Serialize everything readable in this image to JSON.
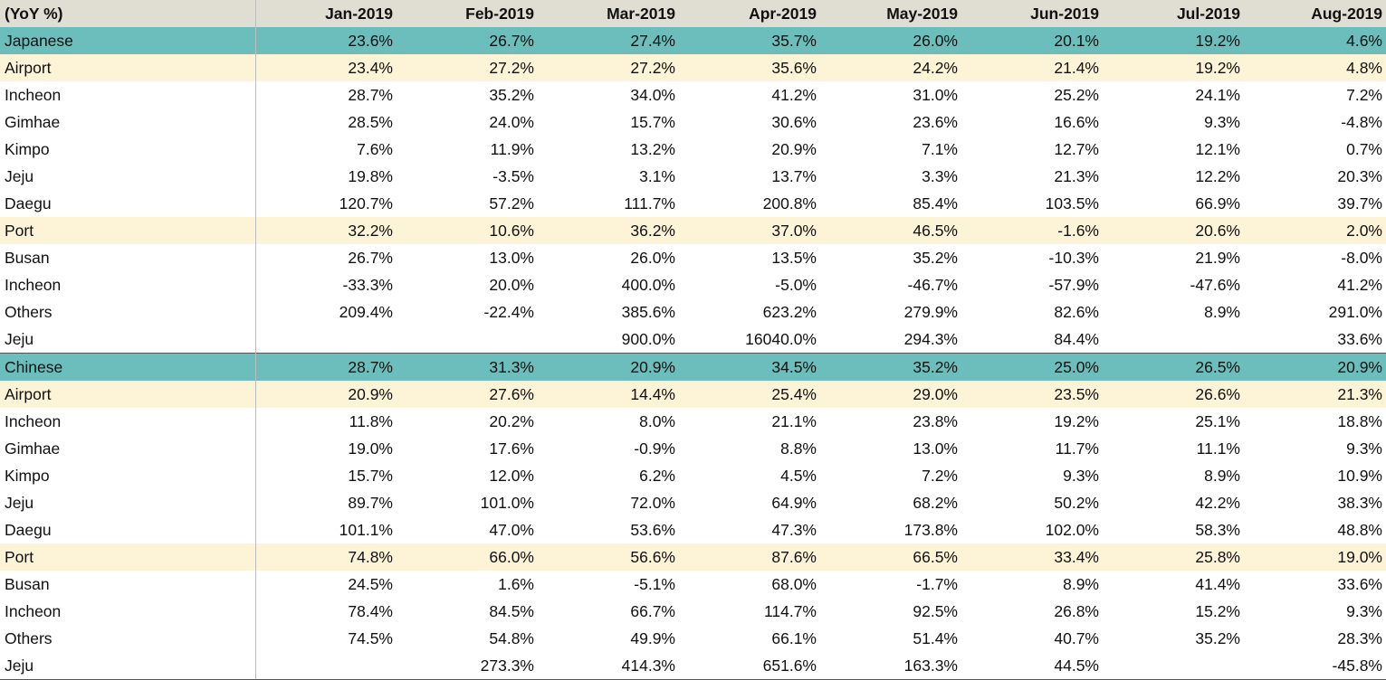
{
  "header": {
    "label": "(YoY %)",
    "months": [
      "Jan-2019",
      "Feb-2019",
      "Mar-2019",
      "Apr-2019",
      "May-2019",
      "Jun-2019",
      "Jul-2019",
      "Aug-2019"
    ]
  },
  "colors": {
    "header_bg": "#e0ddd3",
    "group_bg": "#6cbebc",
    "subgroup_bg": "#fdf3d7"
  },
  "rows": [
    {
      "label": "Japanese",
      "kind": "group",
      "values": [
        "23.6%",
        "26.7%",
        "27.4%",
        "35.7%",
        "26.0%",
        "20.1%",
        "19.2%",
        "4.6%"
      ]
    },
    {
      "label": "Airport",
      "kind": "subgroup",
      "values": [
        "23.4%",
        "27.2%",
        "27.2%",
        "35.6%",
        "24.2%",
        "21.4%",
        "19.2%",
        "4.8%"
      ]
    },
    {
      "label": "Incheon",
      "kind": "detail",
      "values": [
        "28.7%",
        "35.2%",
        "34.0%",
        "41.2%",
        "31.0%",
        "25.2%",
        "24.1%",
        "7.2%"
      ]
    },
    {
      "label": "Gimhae",
      "kind": "detail",
      "values": [
        "28.5%",
        "24.0%",
        "15.7%",
        "30.6%",
        "23.6%",
        "16.6%",
        "9.3%",
        "-4.8%"
      ]
    },
    {
      "label": "Kimpo",
      "kind": "detail",
      "values": [
        "7.6%",
        "11.9%",
        "13.2%",
        "20.9%",
        "7.1%",
        "12.7%",
        "12.1%",
        "0.7%"
      ]
    },
    {
      "label": "Jeju",
      "kind": "detail",
      "values": [
        "19.8%",
        "-3.5%",
        "3.1%",
        "13.7%",
        "3.3%",
        "21.3%",
        "12.2%",
        "20.3%"
      ]
    },
    {
      "label": "Daegu",
      "kind": "detail",
      "values": [
        "120.7%",
        "57.2%",
        "111.7%",
        "200.8%",
        "85.4%",
        "103.5%",
        "66.9%",
        "39.7%"
      ]
    },
    {
      "label": "Port",
      "kind": "subgroup",
      "values": [
        "32.2%",
        "10.6%",
        "36.2%",
        "37.0%",
        "46.5%",
        "-1.6%",
        "20.6%",
        "2.0%"
      ]
    },
    {
      "label": "Busan",
      "kind": "detail",
      "values": [
        "26.7%",
        "13.0%",
        "26.0%",
        "13.5%",
        "35.2%",
        "-10.3%",
        "21.9%",
        "-8.0%"
      ]
    },
    {
      "label": "Incheon",
      "kind": "detail",
      "values": [
        "-33.3%",
        "20.0%",
        "400.0%",
        "-5.0%",
        "-46.7%",
        "-57.9%",
        "-47.6%",
        "41.2%"
      ]
    },
    {
      "label": "Others",
      "kind": "detail",
      "values": [
        "209.4%",
        "-22.4%",
        "385.6%",
        "623.2%",
        "279.9%",
        "82.6%",
        "8.9%",
        "291.0%"
      ]
    },
    {
      "label": "Jeju",
      "kind": "detail",
      "values": [
        "",
        "",
        "900.0%",
        "16040.0%",
        "294.3%",
        "84.4%",
        "",
        "33.6%"
      ]
    },
    {
      "label": "Chinese",
      "kind": "group",
      "section_start": true,
      "values": [
        "28.7%",
        "31.3%",
        "20.9%",
        "34.5%",
        "35.2%",
        "25.0%",
        "26.5%",
        "20.9%"
      ]
    },
    {
      "label": "Airport",
      "kind": "subgroup",
      "values": [
        "20.9%",
        "27.6%",
        "14.4%",
        "25.4%",
        "29.0%",
        "23.5%",
        "26.6%",
        "21.3%"
      ]
    },
    {
      "label": "Incheon",
      "kind": "detail",
      "values": [
        "11.8%",
        "20.2%",
        "8.0%",
        "21.1%",
        "23.8%",
        "19.2%",
        "25.1%",
        "18.8%"
      ]
    },
    {
      "label": "Gimhae",
      "kind": "detail",
      "values": [
        "19.0%",
        "17.6%",
        "-0.9%",
        "8.8%",
        "13.0%",
        "11.7%",
        "11.1%",
        "9.3%"
      ]
    },
    {
      "label": "Kimpo",
      "kind": "detail",
      "values": [
        "15.7%",
        "12.0%",
        "6.2%",
        "4.5%",
        "7.2%",
        "9.3%",
        "8.9%",
        "10.9%"
      ]
    },
    {
      "label": "Jeju",
      "kind": "detail",
      "values": [
        "89.7%",
        "101.0%",
        "72.0%",
        "64.9%",
        "68.2%",
        "50.2%",
        "42.2%",
        "38.3%"
      ]
    },
    {
      "label": "Daegu",
      "kind": "detail",
      "values": [
        "101.1%",
        "47.0%",
        "53.6%",
        "47.3%",
        "173.8%",
        "102.0%",
        "58.3%",
        "48.8%"
      ]
    },
    {
      "label": "Port",
      "kind": "subgroup",
      "values": [
        "74.8%",
        "66.0%",
        "56.6%",
        "87.6%",
        "66.5%",
        "33.4%",
        "25.8%",
        "19.0%"
      ]
    },
    {
      "label": "Busan",
      "kind": "detail",
      "values": [
        "24.5%",
        "1.6%",
        "-5.1%",
        "68.0%",
        "-1.7%",
        "8.9%",
        "41.4%",
        "33.6%"
      ]
    },
    {
      "label": "Incheon",
      "kind": "detail",
      "values": [
        "78.4%",
        "84.5%",
        "66.7%",
        "114.7%",
        "92.5%",
        "26.8%",
        "15.2%",
        "9.3%"
      ]
    },
    {
      "label": "Others",
      "kind": "detail",
      "values": [
        "74.5%",
        "54.8%",
        "49.9%",
        "66.1%",
        "51.4%",
        "40.7%",
        "35.2%",
        "28.3%"
      ]
    },
    {
      "label": "Jeju",
      "kind": "detail",
      "table_end": true,
      "values": [
        "",
        "273.3%",
        "414.3%",
        "651.6%",
        "163.3%",
        "44.5%",
        "",
        "-45.8%"
      ]
    }
  ]
}
